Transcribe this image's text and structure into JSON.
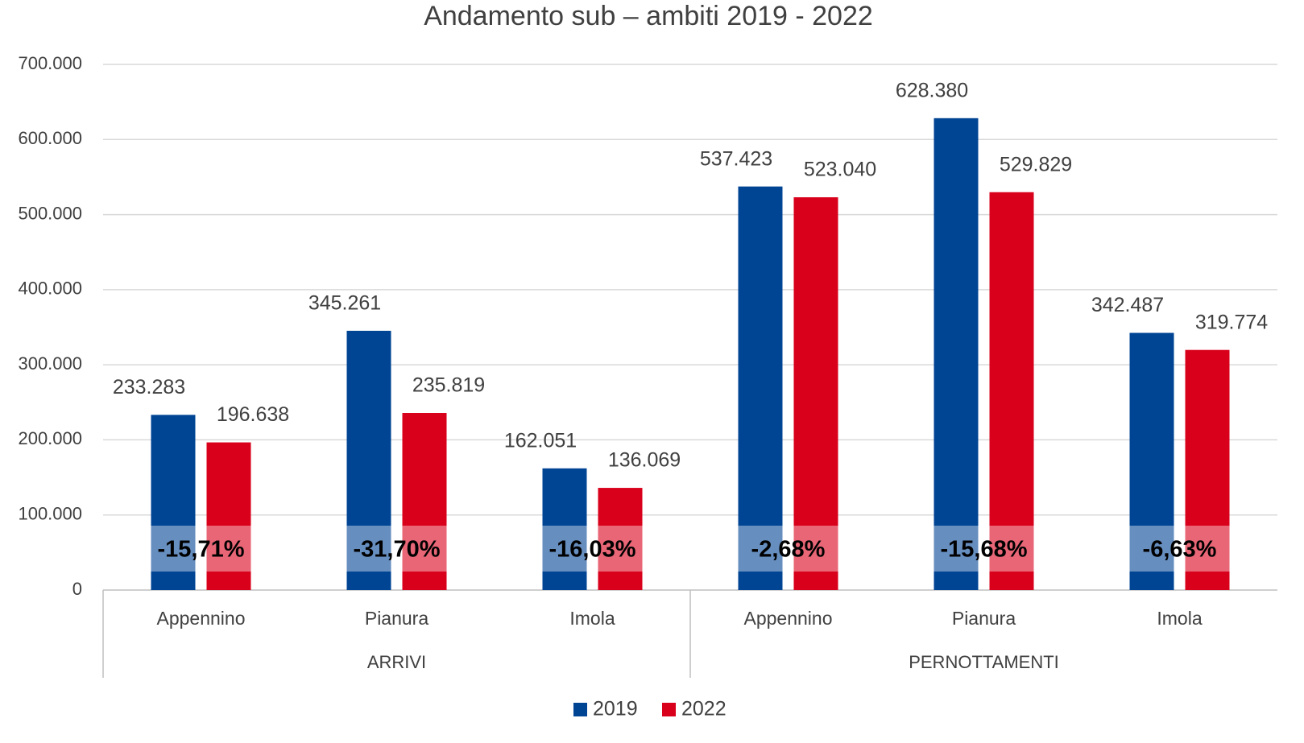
{
  "chart_data": {
    "type": "bar",
    "title": "Andamento sub – ambiti 2019 - 2022",
    "groups": [
      {
        "name": "ARRIVI",
        "categories": [
          "Appennino",
          "Pianura",
          "Imola"
        ]
      },
      {
        "name": "PERNOTTAMENTI",
        "categories": [
          "Appennino",
          "Pianura",
          "Imola"
        ]
      }
    ],
    "series": [
      {
        "name": "2019",
        "color": "#004494",
        "values": [
          233283,
          345261,
          162051,
          537423,
          628380,
          342487
        ],
        "value_labels": [
          "233.283",
          "345.261",
          "162.051",
          "537.423",
          "628.380",
          "342.487"
        ]
      },
      {
        "name": "2022",
        "color": "#d9001b",
        "values": [
          196638,
          235819,
          136069,
          523040,
          529829,
          319774
        ],
        "value_labels": [
          "196.638",
          "235.819",
          "136.069",
          "523.040",
          "529.829",
          "319.774"
        ]
      }
    ],
    "annotations": [
      "-15,71%",
      "-31,70%",
      "-16,03%",
      "-2,68%",
      "-15,68%",
      "-6,63%"
    ],
    "ylim": [
      0,
      700000
    ],
    "yticks": [
      0,
      {
        "value": 100000,
        "label": "100.000"
      },
      {
        "value": 200000,
        "label": "200.000"
      },
      {
        "value": 300000,
        "label": "300.000"
      },
      {
        "value": 400000,
        "label": "400.000"
      },
      {
        "value": 500000,
        "label": "500.000"
      },
      {
        "value": 600000,
        "label": "600.000"
      },
      {
        "value": 700000,
        "label": "700.000"
      }
    ],
    "grid": true,
    "legend": "bottom"
  }
}
